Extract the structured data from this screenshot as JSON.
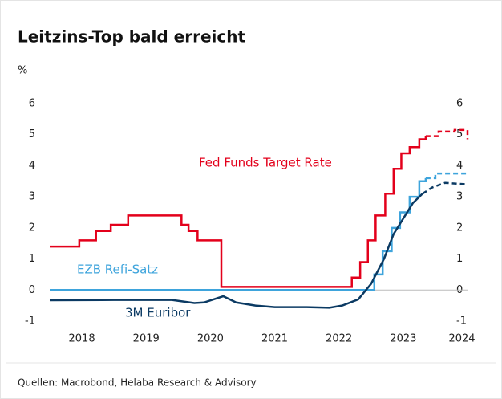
{
  "chart_data": {
    "type": "line",
    "title": "Leitzins-Top bald erreicht",
    "y_label": "%",
    "source": "Quellen: Macrobond, Helaba Research & Advisory",
    "xlim": [
      2017.5,
      2024.0
    ],
    "xticks": [
      2018,
      2019,
      2020,
      2021,
      2022,
      2023,
      2024
    ],
    "ylim": [
      -1,
      6
    ],
    "yticks": [
      -1,
      0,
      1,
      2,
      3,
      4,
      5,
      6
    ],
    "right_axis": true,
    "series": [
      {
        "name": "Fed Funds Target Rate",
        "color": "#e3001b",
        "step": true,
        "dash_from": 2023.35,
        "x": [
          2017.5,
          2017.96,
          2018.22,
          2018.45,
          2018.72,
          2019.55,
          2019.66,
          2019.8,
          2020.17,
          2021.75,
          2022.2,
          2022.33,
          2022.45,
          2022.57,
          2022.72,
          2022.85,
          2022.97,
          2023.1,
          2023.25,
          2023.35,
          2023.55,
          2023.8,
          2024.0
        ],
        "values": [
          1.4,
          1.6,
          1.9,
          2.1,
          2.4,
          2.1,
          1.9,
          1.6,
          0.1,
          0.1,
          0.4,
          0.9,
          1.6,
          2.4,
          3.1,
          3.9,
          4.4,
          4.6,
          4.85,
          4.95,
          5.1,
          5.15,
          4.85
        ]
      },
      {
        "name": "EZB Refi-Satz",
        "color": "#3ea4dc",
        "step": true,
        "dash_from": 2023.35,
        "x": [
          2017.5,
          2022.55,
          2022.68,
          2022.82,
          2022.95,
          2023.1,
          2023.25,
          2023.35,
          2023.5,
          2024.0
        ],
        "values": [
          0,
          0.5,
          1.25,
          2.0,
          2.5,
          3.0,
          3.5,
          3.6,
          3.75,
          3.75
        ]
      },
      {
        "name": "3M Euribor",
        "color": "#0b3a63",
        "step": false,
        "dash_from": 2023.3,
        "x": [
          2017.5,
          2018.5,
          2019.4,
          2019.75,
          2019.9,
          2020.2,
          2020.4,
          2020.7,
          2021.0,
          2021.5,
          2021.85,
          2022.05,
          2022.3,
          2022.5,
          2022.7,
          2022.85,
          2023.0,
          2023.15,
          2023.3,
          2023.45,
          2023.65,
          2024.0
        ],
        "values": [
          -0.33,
          -0.32,
          -0.32,
          -0.42,
          -0.4,
          -0.2,
          -0.4,
          -0.5,
          -0.55,
          -0.55,
          -0.57,
          -0.5,
          -0.3,
          0.2,
          1.0,
          1.8,
          2.3,
          2.8,
          3.1,
          3.3,
          3.45,
          3.4
        ]
      }
    ]
  }
}
